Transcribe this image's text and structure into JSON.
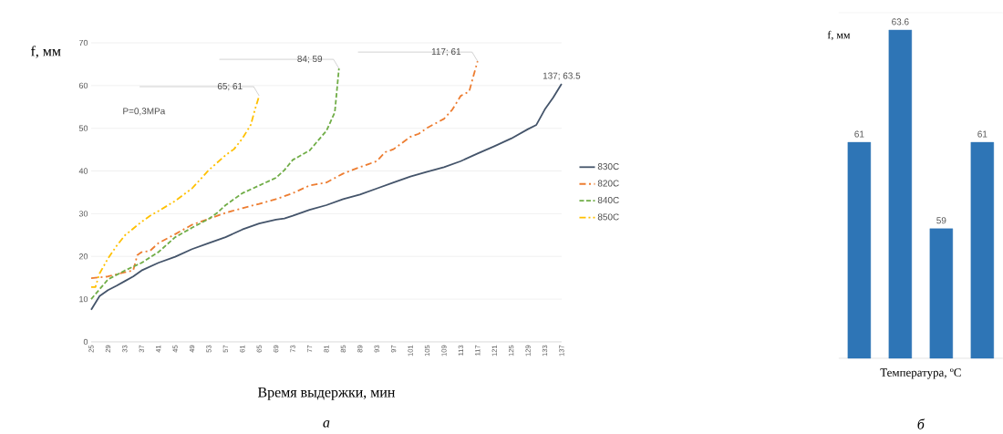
{
  "chart_data": [
    {
      "type": "line",
      "subtitle": "а",
      "xlabel": "Время выдержки, мин",
      "ylabel": "f, мм",
      "xlim": [
        25,
        137
      ],
      "ylim": [
        0,
        70
      ],
      "xticks": [
        25,
        29,
        33,
        37,
        41,
        45,
        49,
        53,
        57,
        61,
        65,
        69,
        73,
        77,
        81,
        85,
        89,
        93,
        97,
        101,
        105,
        109,
        113,
        117,
        121,
        125,
        129,
        133,
        137
      ],
      "yticks": [
        0,
        10,
        20,
        30,
        40,
        50,
        60,
        70
      ],
      "grid": "y",
      "legend": "right",
      "annotations": [
        "P=0,3MPa",
        {
          "text": "65; 61",
          "x": 65,
          "y": 57.6
        },
        {
          "text": "84; 59",
          "x": 84,
          "y": 64
        },
        {
          "text": "117; 61",
          "x": 117,
          "y": 65.7
        },
        {
          "text": "137; 63.5",
          "x": 137,
          "y": 60.4
        }
      ],
      "series": [
        {
          "name": "830C",
          "color": "#44546a",
          "line_style": "solid",
          "x": [
            25,
            27,
            29,
            31,
            33,
            35,
            37,
            41,
            45,
            49,
            53,
            57,
            61,
            65,
            69,
            71,
            73,
            77,
            81,
            85,
            89,
            93,
            97,
            101,
            105,
            109,
            113,
            117,
            121,
            125,
            129,
            131,
            133,
            135,
            137
          ],
          "values": [
            7.5,
            10.7,
            12.1,
            13.1,
            14.2,
            15.3,
            16.7,
            18.5,
            19.9,
            21.7,
            23.1,
            24.5,
            26.3,
            27.7,
            28.6,
            28.9,
            29.5,
            30.9,
            32,
            33.4,
            34.5,
            35.9,
            37.3,
            38.7,
            39.8,
            40.9,
            42.3,
            44.1,
            45.8,
            47.6,
            49.8,
            50.8,
            54.4,
            57.2,
            60.4
          ]
        },
        {
          "name": "820C",
          "color": "#ed7d31",
          "line_style": "dashdot",
          "x": [
            25,
            29,
            33,
            35,
            36,
            37,
            39,
            41,
            45,
            49,
            53,
            57,
            61,
            65,
            69,
            73,
            77,
            81,
            85,
            89,
            91,
            93,
            95,
            97,
            101,
            103,
            105,
            109,
            111,
            113,
            115,
            116,
            117
          ],
          "values": [
            14.9,
            15.3,
            16.3,
            16.7,
            20.3,
            21,
            21.3,
            23.1,
            25.2,
            27.4,
            28.8,
            30.2,
            31.3,
            32.3,
            33.4,
            34.8,
            36.6,
            37.3,
            39.4,
            40.9,
            41.6,
            42.3,
            44.4,
            45.1,
            48,
            48.7,
            50.1,
            52.2,
            54.4,
            57.6,
            58.6,
            62.2,
            65.7
          ]
        },
        {
          "name": "840C",
          "color": "#70ad47",
          "line_style": "dashed",
          "x": [
            25,
            29,
            33,
            37,
            41,
            45,
            49,
            53,
            55,
            57,
            61,
            65,
            69,
            71,
            73,
            77,
            81,
            83,
            84
          ],
          "values": [
            10,
            14.6,
            16.7,
            18.5,
            21,
            24.5,
            26.7,
            28.8,
            30.2,
            32,
            34.8,
            36.6,
            38.4,
            40.2,
            42.6,
            44.8,
            49.4,
            53.7,
            64
          ]
        },
        {
          "name": "850C",
          "color": "#ffc000",
          "line_style": "dashdotdot",
          "x": [
            25,
            26,
            27,
            29,
            31,
            33,
            37,
            39,
            41,
            45,
            49,
            53,
            57,
            59,
            61,
            63,
            64,
            65
          ],
          "values": [
            12.8,
            12.8,
            16,
            19.5,
            22.4,
            24.9,
            28.1,
            29.5,
            30.6,
            33,
            35.9,
            40.2,
            43.7,
            45.1,
            47.6,
            50.8,
            54.4,
            57.6
          ]
        }
      ]
    },
    {
      "type": "bar",
      "subtitle": "б",
      "xlabel": "Температура, ºC",
      "ylabel": "f, мм",
      "categories": [
        null,
        null,
        null,
        null
      ],
      "values": [
        61,
        63.6,
        59,
        61
      ],
      "color": "#2e75b6",
      "data_labels": true,
      "ylim": [
        56,
        64
      ]
    }
  ]
}
